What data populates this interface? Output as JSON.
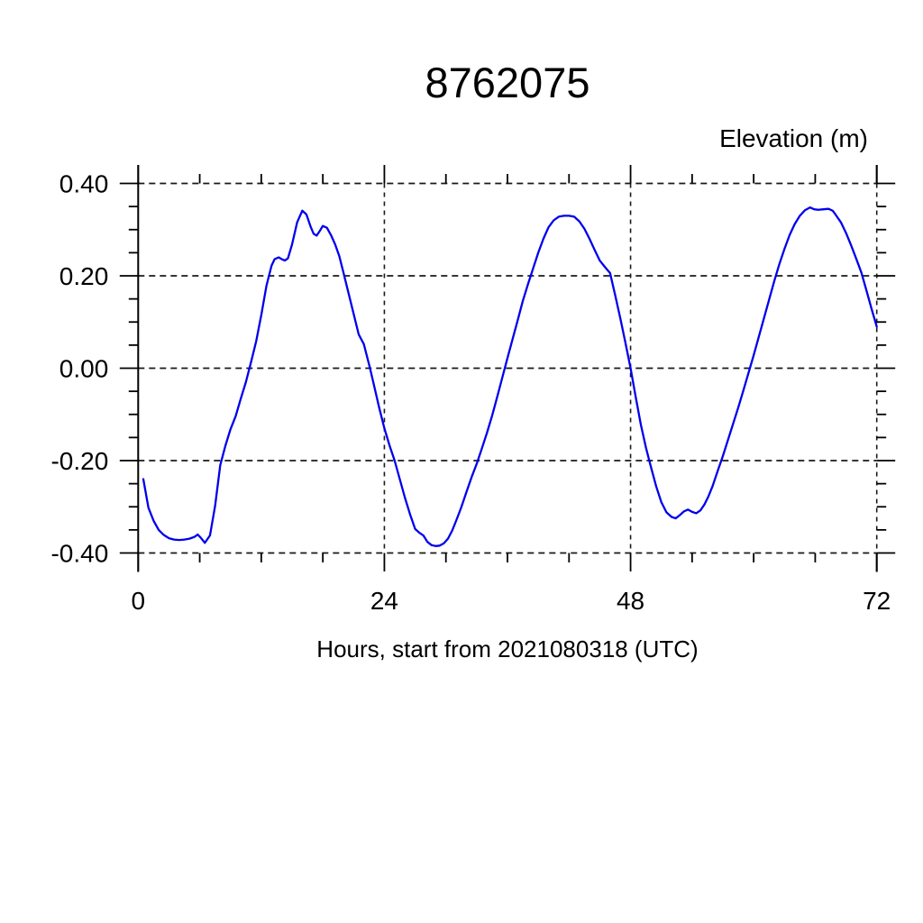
{
  "chart_data": {
    "type": "line",
    "title": "8762075",
    "ylabel": "Elevation (m)",
    "xlabel": "Hours, start from 2021080318 (UTC)",
    "xlim": [
      0,
      72
    ],
    "ylim": [
      -0.437,
      0.437
    ],
    "x_axis": {
      "major_ticks": [
        0,
        24,
        48,
        72
      ],
      "tick_labels": [
        "0",
        "24",
        "48",
        "72"
      ],
      "minor_ticks": [
        6,
        12,
        18,
        30,
        36,
        42,
        54,
        60,
        66
      ],
      "gridlines_at": [
        24,
        48,
        72
      ]
    },
    "y_axis": {
      "major_ticks": [
        -0.4,
        -0.2,
        0.0,
        0.2,
        0.4
      ],
      "tick_labels": [
        "-0.40",
        "-0.20",
        "0.00",
        "0.20",
        "0.40"
      ],
      "minor_ticks": [
        -0.35,
        -0.3,
        -0.25,
        -0.15,
        -0.1,
        -0.05,
        0.05,
        0.1,
        0.15,
        0.25,
        0.3,
        0.35
      ],
      "gridlines_at": [
        -0.4,
        -0.2,
        0.0,
        0.2,
        0.4
      ]
    },
    "grid_style": "dashed",
    "legend": "none",
    "series": [
      {
        "name": "elevation",
        "color": "#0000ee",
        "points": [
          [
            0.5,
            -0.24
          ],
          [
            1,
            -0.302
          ],
          [
            1.5,
            -0.33
          ],
          [
            2,
            -0.35
          ],
          [
            2.5,
            -0.361
          ],
          [
            3,
            -0.368
          ],
          [
            3.5,
            -0.371
          ],
          [
            4,
            -0.372
          ],
          [
            4.5,
            -0.371
          ],
          [
            5,
            -0.369
          ],
          [
            5.5,
            -0.365
          ],
          [
            5.8,
            -0.36
          ],
          [
            6.1,
            -0.367
          ],
          [
            6.5,
            -0.378
          ],
          [
            7,
            -0.362
          ],
          [
            7.5,
            -0.298
          ],
          [
            8,
            -0.21
          ],
          [
            8.5,
            -0.168
          ],
          [
            9,
            -0.132
          ],
          [
            9.5,
            -0.104
          ],
          [
            10,
            -0.066
          ],
          [
            10.5,
            -0.03
          ],
          [
            11,
            0.013
          ],
          [
            11.5,
            0.058
          ],
          [
            12,
            0.115
          ],
          [
            12.5,
            0.178
          ],
          [
            13,
            0.222
          ],
          [
            13.3,
            0.236
          ],
          [
            13.7,
            0.24
          ],
          [
            14,
            0.236
          ],
          [
            14.3,
            0.233
          ],
          [
            14.6,
            0.238
          ],
          [
            15,
            0.268
          ],
          [
            15.5,
            0.316
          ],
          [
            16,
            0.341
          ],
          [
            16.4,
            0.333
          ],
          [
            16.8,
            0.307
          ],
          [
            17.1,
            0.291
          ],
          [
            17.4,
            0.287
          ],
          [
            17.7,
            0.297
          ],
          [
            18,
            0.308
          ],
          [
            18.4,
            0.304
          ],
          [
            18.8,
            0.288
          ],
          [
            19.2,
            0.268
          ],
          [
            19.6,
            0.243
          ],
          [
            20,
            0.208
          ],
          [
            20.5,
            0.163
          ],
          [
            21,
            0.118
          ],
          [
            21.5,
            0.073
          ],
          [
            22,
            0.052
          ],
          [
            22.6,
            0.0
          ],
          [
            23,
            -0.038
          ],
          [
            23.5,
            -0.086
          ],
          [
            24,
            -0.13
          ],
          [
            24.5,
            -0.167
          ],
          [
            25,
            -0.2
          ],
          [
            25.5,
            -0.24
          ],
          [
            26,
            -0.28
          ],
          [
            26.5,
            -0.316
          ],
          [
            27,
            -0.348
          ],
          [
            27.4,
            -0.356
          ],
          [
            27.8,
            -0.362
          ],
          [
            28.2,
            -0.376
          ],
          [
            28.6,
            -0.383
          ],
          [
            29,
            -0.385
          ],
          [
            29.4,
            -0.384
          ],
          [
            29.8,
            -0.379
          ],
          [
            30.2,
            -0.369
          ],
          [
            30.6,
            -0.352
          ],
          [
            31,
            -0.33
          ],
          [
            31.5,
            -0.301
          ],
          [
            32,
            -0.268
          ],
          [
            32.5,
            -0.236
          ],
          [
            33,
            -0.207
          ],
          [
            33.5,
            -0.174
          ],
          [
            34,
            -0.14
          ],
          [
            34.5,
            -0.103
          ],
          [
            35,
            -0.062
          ],
          [
            35.5,
            -0.02
          ],
          [
            36,
            0.022
          ],
          [
            36.5,
            0.063
          ],
          [
            37,
            0.104
          ],
          [
            37.5,
            0.146
          ],
          [
            38,
            0.182
          ],
          [
            38.5,
            0.216
          ],
          [
            39,
            0.25
          ],
          [
            39.5,
            0.28
          ],
          [
            40,
            0.305
          ],
          [
            40.5,
            0.32
          ],
          [
            41,
            0.328
          ],
          [
            41.5,
            0.33
          ],
          [
            42,
            0.33
          ],
          [
            42.5,
            0.328
          ],
          [
            43,
            0.318
          ],
          [
            43.5,
            0.302
          ],
          [
            44,
            0.28
          ],
          [
            44.5,
            0.256
          ],
          [
            45,
            0.233
          ],
          [
            45.5,
            0.219
          ],
          [
            46,
            0.206
          ],
          [
            46.5,
            0.158
          ],
          [
            47,
            0.108
          ],
          [
            47.5,
            0.055
          ],
          [
            48,
            0.0
          ],
          [
            48.5,
            -0.062
          ],
          [
            49,
            -0.122
          ],
          [
            49.5,
            -0.172
          ],
          [
            50,
            -0.215
          ],
          [
            50.5,
            -0.256
          ],
          [
            51,
            -0.29
          ],
          [
            51.5,
            -0.312
          ],
          [
            52,
            -0.322
          ],
          [
            52.4,
            -0.325
          ],
          [
            52.8,
            -0.318
          ],
          [
            53.2,
            -0.31
          ],
          [
            53.6,
            -0.306
          ],
          [
            54,
            -0.311
          ],
          [
            54.4,
            -0.314
          ],
          [
            54.8,
            -0.308
          ],
          [
            55.2,
            -0.295
          ],
          [
            55.6,
            -0.277
          ],
          [
            56,
            -0.255
          ],
          [
            56.5,
            -0.222
          ],
          [
            57,
            -0.19
          ],
          [
            57.5,
            -0.155
          ],
          [
            58,
            -0.12
          ],
          [
            58.5,
            -0.085
          ],
          [
            59,
            -0.048
          ],
          [
            59.5,
            -0.01
          ],
          [
            60,
            0.028
          ],
          [
            60.5,
            0.068
          ],
          [
            61,
            0.108
          ],
          [
            61.5,
            0.148
          ],
          [
            62,
            0.188
          ],
          [
            62.5,
            0.225
          ],
          [
            63,
            0.258
          ],
          [
            63.5,
            0.288
          ],
          [
            64,
            0.312
          ],
          [
            64.5,
            0.33
          ],
          [
            65,
            0.342
          ],
          [
            65.5,
            0.348
          ],
          [
            65.9,
            0.344
          ],
          [
            66.3,
            0.343
          ],
          [
            66.8,
            0.344
          ],
          [
            67.3,
            0.345
          ],
          [
            67.7,
            0.341
          ],
          [
            68,
            0.332
          ],
          [
            68.5,
            0.316
          ],
          [
            69,
            0.293
          ],
          [
            69.5,
            0.266
          ],
          [
            70,
            0.237
          ],
          [
            70.5,
            0.207
          ],
          [
            71,
            0.168
          ],
          [
            71.5,
            0.128
          ],
          [
            72,
            0.09
          ]
        ]
      }
    ]
  },
  "colors": {
    "line": "#0000ee",
    "axis": "#000000",
    "grid": "#1a1a1a",
    "text": "#000000",
    "background": "#ffffff"
  }
}
